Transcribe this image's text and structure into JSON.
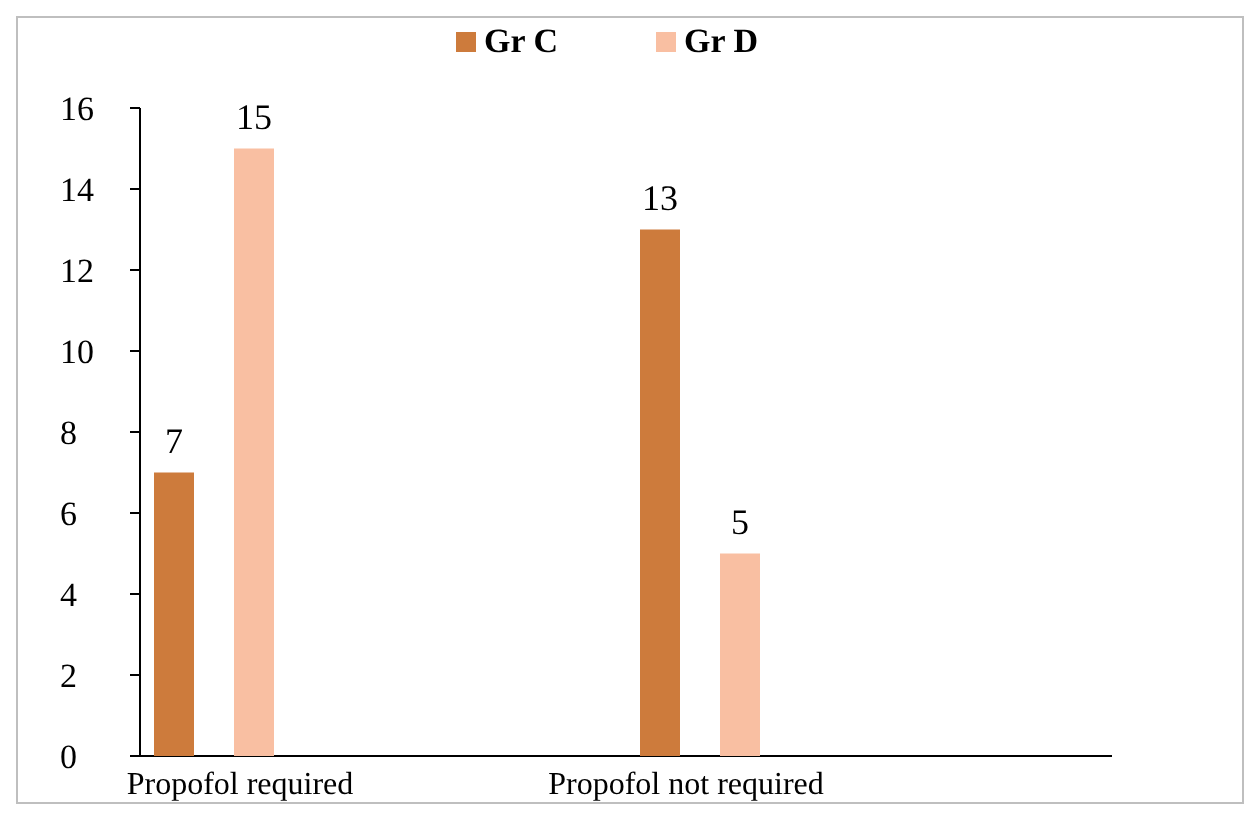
{
  "chart_data": {
    "type": "bar",
    "categories": [
      "Propofol required",
      "Propofol not required"
    ],
    "series": [
      {
        "name": "Gr C",
        "color": "#cd7b3c",
        "values": [
          7,
          13
        ]
      },
      {
        "name": "Gr D",
        "color": "#f9bfa2",
        "values": [
          15,
          5
        ]
      }
    ],
    "ylim": [
      0,
      16
    ],
    "yticks": [
      0,
      2,
      4,
      6,
      8,
      10,
      12,
      14,
      16
    ],
    "data_labels": true,
    "legend": "top",
    "grid": false
  }
}
